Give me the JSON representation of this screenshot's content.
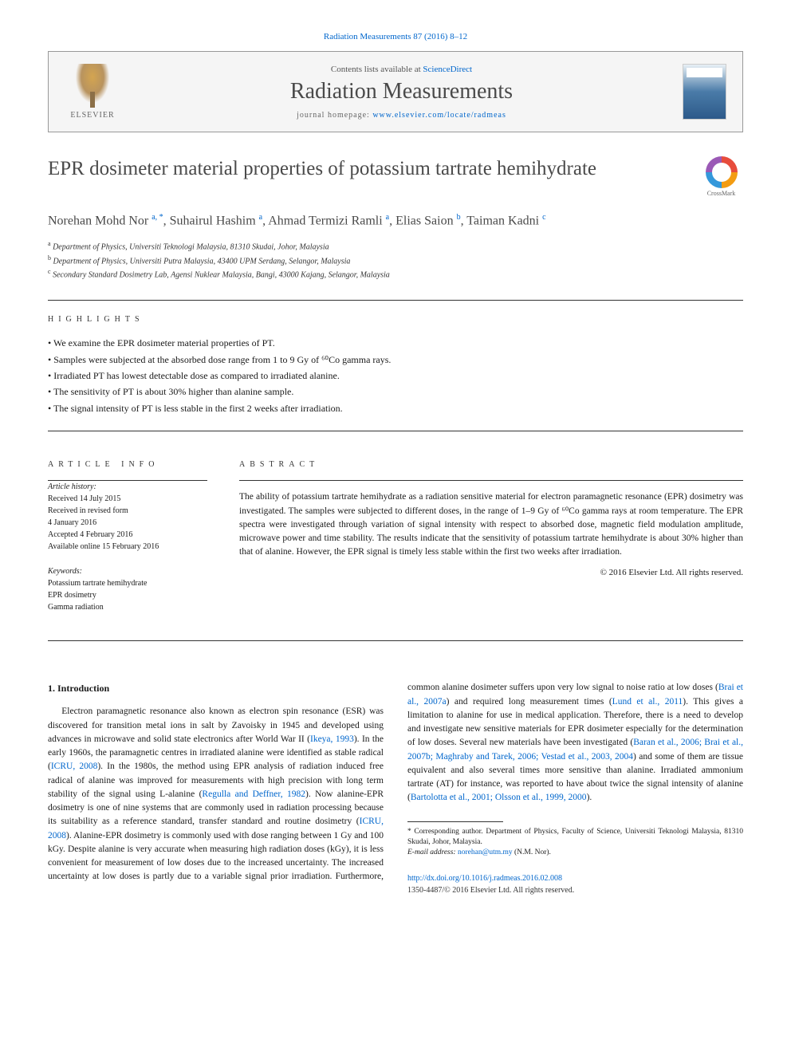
{
  "top_citation": "Radiation Measurements 87 (2016) 8–12",
  "header": {
    "contents_prefix": "Contents lists available at ",
    "contents_link": "ScienceDirect",
    "journal_name": "Radiation Measurements",
    "homepage_prefix": "journal homepage: ",
    "homepage_url": "www.elsevier.com/locate/radmeas",
    "publisher": "ELSEVIER"
  },
  "crossmark_label": "CrossMark",
  "title": "EPR dosimeter material properties of potassium tartrate hemihydrate",
  "authors_html": "Norehan Mohd Nor <sup>a, *</sup>, Suhairul Hashim <sup>a</sup>, Ahmad Termizi Ramli <sup>a</sup>, Elias Saion <sup>b</sup>, Taiman Kadni <sup>c</sup>",
  "affiliations": [
    {
      "sup": "a",
      "text": "Department of Physics, Universiti Teknologi Malaysia, 81310 Skudai, Johor, Malaysia"
    },
    {
      "sup": "b",
      "text": "Department of Physics, Universiti Putra Malaysia, 43400 UPM Serdang, Selangor, Malaysia"
    },
    {
      "sup": "c",
      "text": "Secondary Standard Dosimetry Lab, Agensi Nuklear Malaysia, Bangi, 43000 Kajang, Selangor, Malaysia"
    }
  ],
  "highlights_label": "HIGHLIGHTS",
  "highlights": [
    "We examine the EPR dosimeter material properties of PT.",
    "Samples were subjected at the absorbed dose range from 1 to 9 Gy of ⁶⁰Co gamma rays.",
    "Irradiated PT has lowest detectable dose as compared to irradiated alanine.",
    "The sensitivity of PT is about 30% higher than alanine sample.",
    "The signal intensity of PT is less stable in the first 2 weeks after irradiation."
  ],
  "article_info_label": "ARTICLE INFO",
  "abstract_label": "ABSTRACT",
  "article_history": {
    "heading": "Article history:",
    "received": "Received 14 July 2015",
    "revised1": "Received in revised form",
    "revised2": "4 January 2016",
    "accepted": "Accepted 4 February 2016",
    "online": "Available online 15 February 2016"
  },
  "keywords": {
    "heading": "Keywords:",
    "items": [
      "Potassium tartrate hemihydrate",
      "EPR dosimetry",
      "Gamma radiation"
    ]
  },
  "abstract": "The ability of potassium tartrate hemihydrate as a radiation sensitive material for electron paramagnetic resonance (EPR) dosimetry was investigated. The samples were subjected to different doses, in the range of 1–9 Gy of ⁶⁰Co gamma rays at room temperature. The EPR spectra were investigated through variation of signal intensity with respect to absorbed dose, magnetic field modulation amplitude, microwave power and time stability. The results indicate that the sensitivity of potassium tartrate hemihydrate is about 30% higher than that of alanine. However, the EPR signal is timely less stable within the first two weeks after irradiation.",
  "copyright_line": "© 2016 Elsevier Ltd. All rights reserved.",
  "intro_heading": "1. Introduction",
  "intro_paragraph": "Electron paramagnetic resonance also known as electron spin resonance (ESR) was discovered for transition metal ions in salt by Zavoisky in 1945 and developed using advances in microwave and solid state electronics after World War II (Ikeya, 1993). In the early 1960s, the paramagnetic centres in irradiated alanine were identified as stable radical (ICRU, 2008). In the 1980s, the method using EPR analysis of radiation induced free radical of alanine was improved for measurements with high precision with long term stability of the signal using L-alanine (Regulla and Deffner, 1982). Now alanine-EPR dosimetry is one of nine systems that are commonly used in radiation processing because its suitability as a reference standard, transfer standard and routine dosimetry (ICRU, 2008). Alanine-EPR dosimetry is commonly used with dose ranging between 1 Gy and 100 kGy. Despite alanine is very accurate when measuring high radiation doses (kGy), it is less convenient for measurement of low doses due to the increased uncertainty. The increased uncertainty at low doses is partly due to a variable signal prior irradiation. Furthermore, common alanine dosimeter suffers upon very low signal to noise ratio at low doses (Brai et al., 2007a) and required long measurement times (Lund et al., 2011). This gives a limitation to alanine for use in medical application. Therefore, there is a need to develop and investigate new sensitive materials for EPR dosimeter especially for the determination of low doses. Several new materials have been investigated (Baran et al., 2006; Brai et al., 2007b; Maghraby and Tarek, 2006; Vestad et al., 2003, 2004) and some of them are tissue equivalent and also several times more sensitive than alanine. Irradiated ammonium tartrate (AT) for instance, was reported to have about twice the signal intensity of alanine (Bartolotta et al., 2001; Olsson et al., 1999, 2000).",
  "corr_author": "* Corresponding author. Department of Physics, Faculty of Science, Universiti Teknologi Malaysia, 81310 Skudai, Johor, Malaysia.",
  "email_label": "E-mail address:",
  "email": "norehan@utm.my",
  "email_name": "(N.M. Nor).",
  "doi": "http://dx.doi.org/10.1016/j.radmeas.2016.02.008",
  "issn_line": "1350-4487/© 2016 Elsevier Ltd. All rights reserved.",
  "colors": {
    "link": "#0066cc",
    "text": "#1a1a1a",
    "heading": "#4a4a4a",
    "border": "#333333",
    "header_bg": "#f5f5f5"
  }
}
